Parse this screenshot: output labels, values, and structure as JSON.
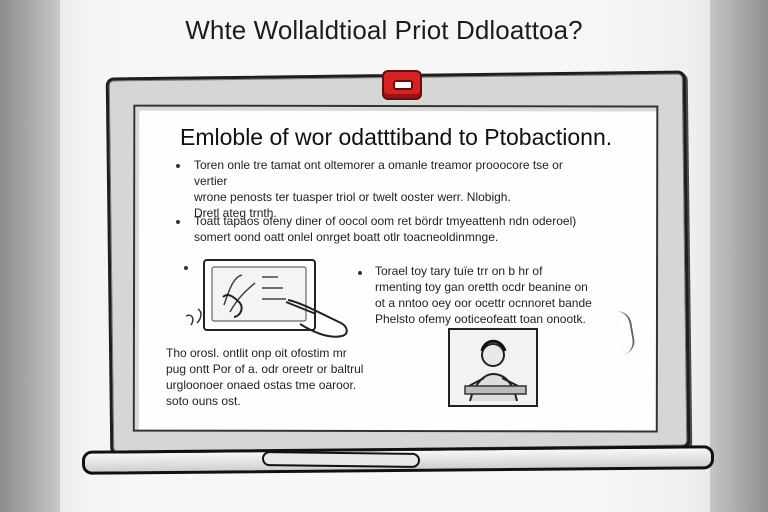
{
  "page": {
    "headline": "Whte Wollaldtioal Priot Ddloattoa?"
  },
  "board": {
    "title": "Emloble of wor odatttiband to Ptobactionn.",
    "blocks": {
      "first": "Toren onle tre tamat ont oltemorer a omanle treamor prooocore tse or vertier\nwrone penosts ter tuasper triol or twelt ooster werr. Nlobigh.\nDretl ateg trnth.",
      "second": "Toatt tapaos ofeny diner of oocol oom ret bördr tmyeattenh ndn oderoel)\nsomert oond oatt onlel onrget boatt otlr toacneoldinmnge.",
      "right": "Torael toy tary tuïe trr on b hr of\nrmenting toy gan oretth ocdr beanine on\not a nntoo oey oor ocettr ocnnoret bande\nPhelsto ofemy ooticeofeatt toan onootk.",
      "left": "Tho orosl. ontlit onp oit ofostim mr\npug ontt Por of a. odr oreetr or baltrul\nurgloonoer onaed ostas tme oaroor.\nsoto ouns ost."
    },
    "colors": {
      "clip": "#d72121",
      "outline": "#1e1e1e",
      "slide": "#fefefe"
    },
    "icons": {
      "marker": "marker-icon",
      "clip": "red-clip-icon",
      "tablet": "tablet-sketch-icon",
      "person": "person-portrait-icon"
    }
  }
}
